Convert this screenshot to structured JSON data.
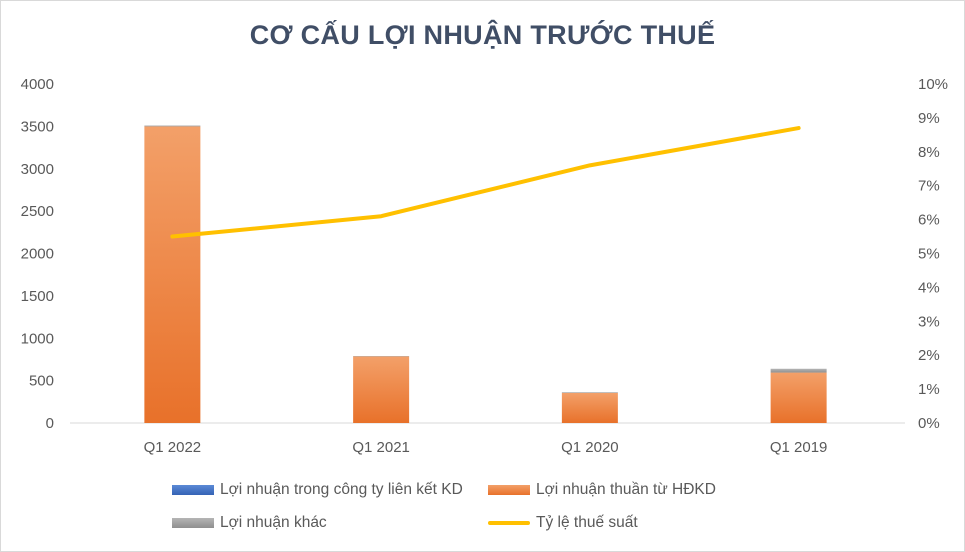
{
  "chart_data": {
    "type": "bar",
    "title": "CƠ CẤU LỢI NHUẬN TRƯỚC THUẾ",
    "categories": [
      "Q1 2022",
      "Q1 2021",
      "Q1 2020",
      "Q1 2019"
    ],
    "series": [
      {
        "name": "Lợi nhuận trong công ty liên kết KD",
        "kind": "bar",
        "axis": "left",
        "color": "#4472c4",
        "values": [
          0,
          0,
          0,
          0
        ]
      },
      {
        "name": "Lợi nhuận thuần từ HĐKD",
        "kind": "bar",
        "axis": "left",
        "color": "#ed7d31",
        "values": [
          3500,
          785,
          355,
          595
        ]
      },
      {
        "name": "Lợi nhuận khác",
        "kind": "bar",
        "axis": "left",
        "color": "#a5a5a5",
        "values": [
          10,
          5,
          8,
          45
        ]
      },
      {
        "name": "Tỷ lệ thuế suất",
        "kind": "line",
        "axis": "right",
        "color": "#ffc000",
        "values": [
          0.055,
          0.061,
          0.076,
          0.087
        ]
      }
    ],
    "y_left": {
      "min": 0,
      "max": 4000,
      "ticks": [
        "0",
        "500",
        "1000",
        "1500",
        "2000",
        "2500",
        "3000",
        "3500",
        "4000"
      ]
    },
    "y_right": {
      "min": 0,
      "max": 0.1,
      "ticks": [
        "0%",
        "1%",
        "2%",
        "3%",
        "4%",
        "5%",
        "6%",
        "7%",
        "8%",
        "9%",
        "10%"
      ]
    },
    "stacked": true,
    "grid": false,
    "legend_position": "bottom"
  }
}
